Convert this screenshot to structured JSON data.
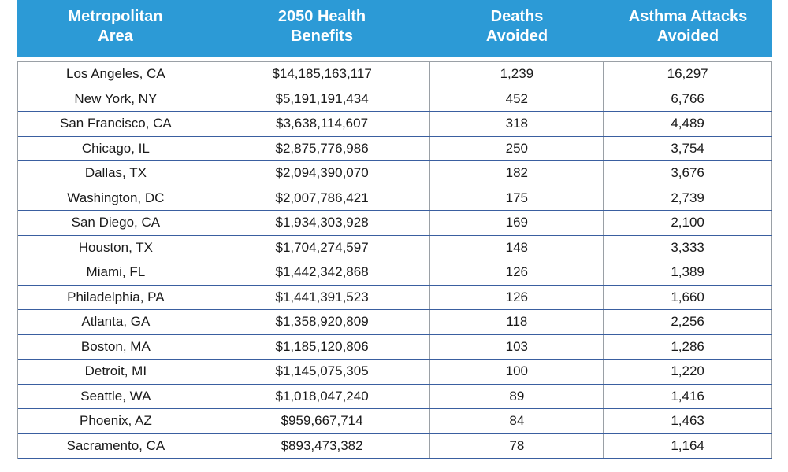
{
  "table": {
    "headers": [
      "Metropolitan\nArea",
      "2050 Health\nBenefits",
      "Deaths\nAvoided",
      "Asthma Attacks\nAvoided"
    ],
    "rows": [
      [
        "Los Angeles, CA",
        "$14,185,163,117",
        "1,239",
        "16,297"
      ],
      [
        "New York, NY",
        "$5,191,191,434",
        "452",
        "6,766"
      ],
      [
        "San Francisco, CA",
        "$3,638,114,607",
        "318",
        "4,489"
      ],
      [
        "Chicago, IL",
        "$2,875,776,986",
        "250",
        "3,754"
      ],
      [
        "Dallas, TX",
        "$2,094,390,070",
        "182",
        "3,676"
      ],
      [
        "Washington, DC",
        "$2,007,786,421",
        "175",
        "2,739"
      ],
      [
        "San Diego, CA",
        "$1,934,303,928",
        "169",
        "2,100"
      ],
      [
        "Houston, TX",
        "$1,704,274,597",
        "148",
        "3,333"
      ],
      [
        "Miami, FL",
        "$1,442,342,868",
        "126",
        "1,389"
      ],
      [
        "Philadelphia, PA",
        "$1,441,391,523",
        "126",
        "1,660"
      ],
      [
        "Atlanta, GA",
        "$1,358,920,809",
        "118",
        "2,256"
      ],
      [
        "Boston, MA",
        "$1,185,120,806",
        "103",
        "1,286"
      ],
      [
        "Detroit, MI",
        "$1,145,075,305",
        "100",
        "1,220"
      ],
      [
        "Seattle, WA",
        "$1,018,047,240",
        "89",
        "1,416"
      ],
      [
        "Phoenix, AZ",
        "$959,667,714",
        "84",
        "1,463"
      ],
      [
        "Sacramento, CA",
        "$893,473,382",
        "78",
        "1,164"
      ]
    ]
  },
  "colors": {
    "header_bg": "#2c9ad6",
    "header_text": "#ffffff",
    "row_rule": "#3a5fa0"
  }
}
